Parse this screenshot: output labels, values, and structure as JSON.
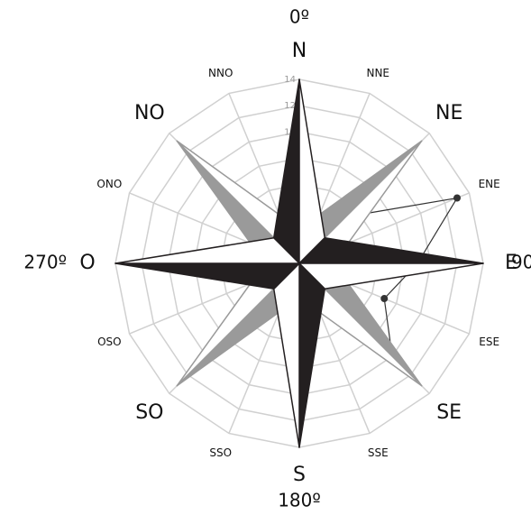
{
  "chart_data": {
    "type": "radar",
    "categories": [
      "N",
      "NNE",
      "NE",
      "ENE",
      "E",
      "ESE",
      "SE",
      "SSE",
      "S",
      "SSO",
      "SO",
      "OSO",
      "O",
      "ONO",
      "NO",
      "NNO"
    ],
    "series": [
      {
        "color": "#333333",
        "values": [
          0,
          0,
          5,
          13,
          9,
          7,
          10,
          0,
          0,
          0,
          0,
          0,
          0,
          0,
          0,
          0
        ]
      }
    ],
    "rlim": [
      0,
      14
    ],
    "rticks": [
      2,
      4,
      6,
      8,
      10,
      12,
      14
    ],
    "grid": true,
    "degree_labels": [
      {
        "direction": 0,
        "label": "0º"
      },
      {
        "direction": 4,
        "label": "90º"
      },
      {
        "direction": 8,
        "label": "180º"
      },
      {
        "direction": 12,
        "label": "270º"
      }
    ]
  }
}
